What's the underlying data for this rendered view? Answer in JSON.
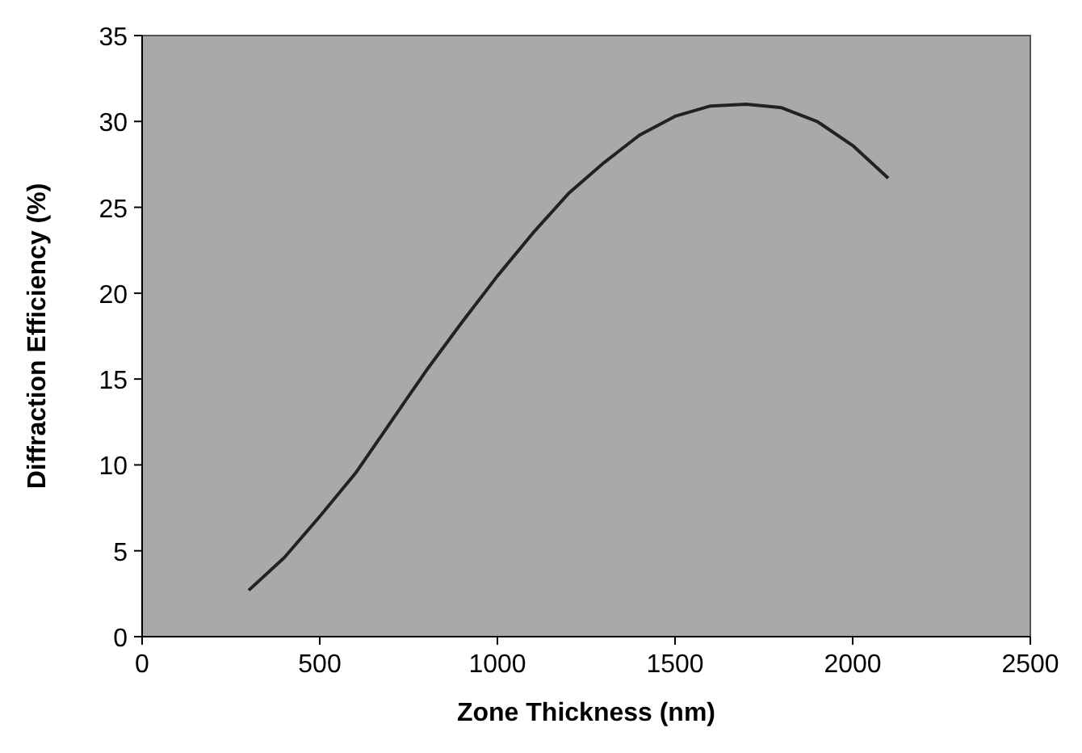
{
  "chart_data": {
    "type": "line",
    "xlabel": "Zone Thickness (nm)",
    "ylabel": "Diffraction Efficiency (%)",
    "x": [
      300,
      400,
      500,
      600,
      700,
      800,
      900,
      1000,
      1100,
      1200,
      1300,
      1400,
      1500,
      1600,
      1700,
      1800,
      1900,
      2000,
      2100
    ],
    "series": [
      {
        "color": "#222222",
        "values": [
          2.7,
          4.6,
          7,
          9.5,
          12.5,
          15.5,
          18.3,
          21,
          23.5,
          25.8,
          27.6,
          29.2,
          30.3,
          30.9,
          31,
          30.8,
          30,
          28.6,
          26.7
        ]
      }
    ],
    "xlim": [
      0,
      2500
    ],
    "xticks": [
      0,
      500,
      1000,
      1500,
      2000,
      2500
    ],
    "ylim": [
      0,
      35
    ],
    "yticks": [
      0,
      5,
      10,
      15,
      20,
      25,
      30,
      35
    ],
    "grid": false,
    "marker": "none",
    "line_style": "solid"
  }
}
